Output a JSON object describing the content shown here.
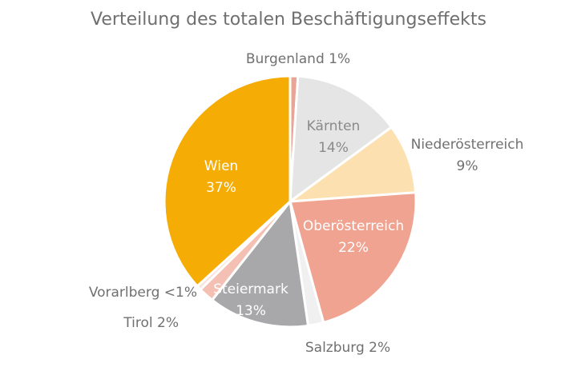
{
  "chart_data": {
    "type": "pie",
    "title": "Verteilung des totalen Beschäftigungseffekts",
    "slices": [
      {
        "name": "Burgenland",
        "label": "1%",
        "value": 1,
        "color": "#e8a597"
      },
      {
        "name": "Kärnten",
        "label": "14%",
        "value": 14,
        "color": "#e5e5e5"
      },
      {
        "name": "Niederösterreich",
        "label": "9%",
        "value": 9,
        "color": "#fce0b0"
      },
      {
        "name": "Oberösterreich",
        "label": "22%",
        "value": 22,
        "color": "#f0a391"
      },
      {
        "name": "Salzburg",
        "label": "2%",
        "value": 2,
        "color": "#f0f0f0"
      },
      {
        "name": "Steiermark",
        "label": "13%",
        "value": 13,
        "color": "#a8a8aa"
      },
      {
        "name": "Tirol",
        "label": "2%",
        "value": 2,
        "color": "#f4c0b4"
      },
      {
        "name": "Vorarlberg",
        "label": "<1%",
        "value": 0.6,
        "color": "#fbe3d9"
      },
      {
        "name": "Wien",
        "label": "37%",
        "value": 37,
        "color": "#f5ac05"
      }
    ]
  }
}
